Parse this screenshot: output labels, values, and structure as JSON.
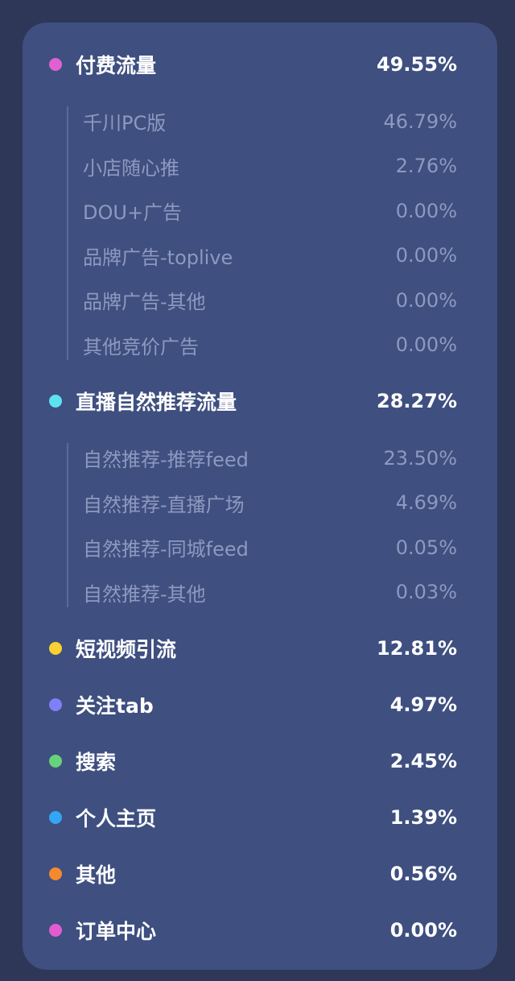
{
  "groups": [
    {
      "label": "付费流量",
      "value": "49.55%",
      "color": "#e062d0",
      "children": [
        {
          "label": "千川PC版",
          "value": "46.79%"
        },
        {
          "label": "小店随心推",
          "value": "2.76%"
        },
        {
          "label": "DOU+广告",
          "value": "0.00%"
        },
        {
          "label": "品牌广告-toplive",
          "value": "0.00%"
        },
        {
          "label": "品牌广告-其他",
          "value": "0.00%"
        },
        {
          "label": "其他竞价广告",
          "value": "0.00%"
        }
      ]
    },
    {
      "label": "直播自然推荐流量",
      "value": "28.27%",
      "color": "#5de3f0",
      "children": [
        {
          "label": "自然推荐-推荐feed",
          "value": "23.50%"
        },
        {
          "label": "自然推荐-直播广场",
          "value": "4.69%"
        },
        {
          "label": "自然推荐-同城feed",
          "value": "0.05%"
        },
        {
          "label": "自然推荐-其他",
          "value": "0.03%"
        }
      ]
    },
    {
      "label": "短视频引流",
      "value": "12.81%",
      "color": "#f7d230",
      "children": []
    },
    {
      "label": "关注tab",
      "value": "4.97%",
      "color": "#7f7ff7",
      "children": []
    },
    {
      "label": "搜索",
      "value": "2.45%",
      "color": "#67d27a",
      "children": []
    },
    {
      "label": "个人主页",
      "value": "1.39%",
      "color": "#33a6f5",
      "children": []
    },
    {
      "label": "其他",
      "value": "0.56%",
      "color": "#f5892e",
      "children": []
    },
    {
      "label": "订单中心",
      "value": "0.00%",
      "color": "#e25ccf",
      "children": []
    }
  ]
}
